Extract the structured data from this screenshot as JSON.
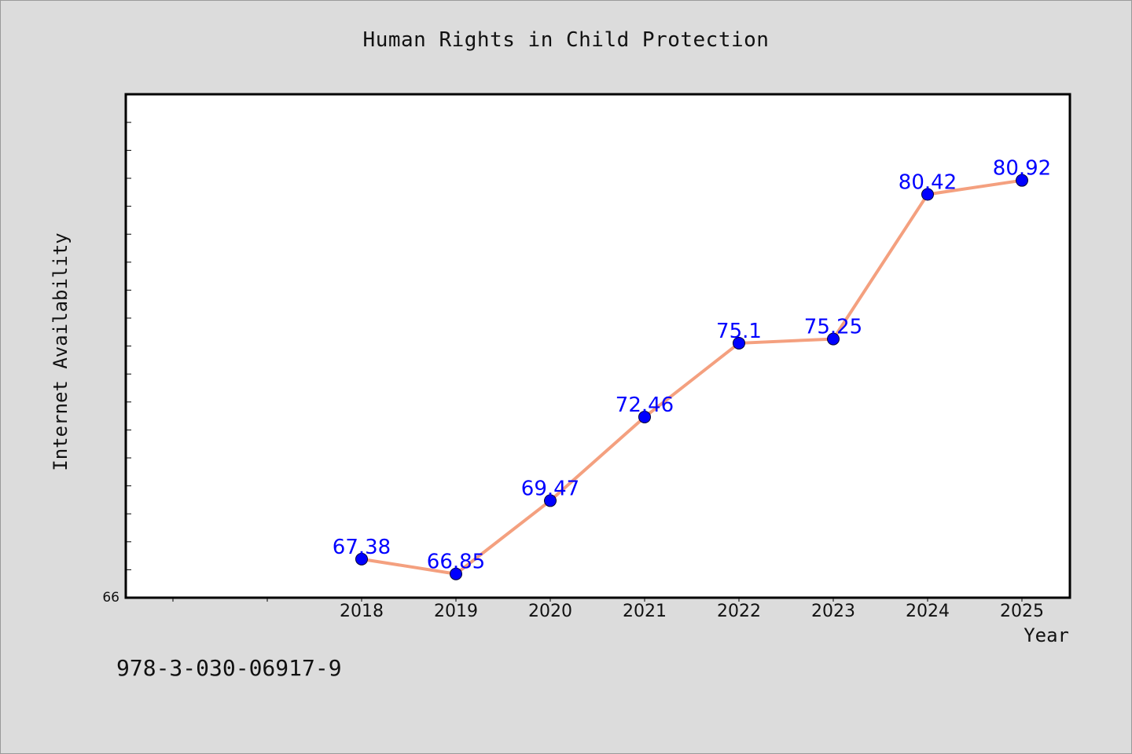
{
  "chart_data": {
    "type": "line",
    "title": "Human Rights in Child Protection",
    "xlabel": "Year",
    "ylabel": "Internet Availability",
    "categories": [
      "2018",
      "2019",
      "2020",
      "2021",
      "2022",
      "2023",
      "2024",
      "2025"
    ],
    "series": [
      {
        "values": [
          67.38,
          66.85,
          69.47,
          72.46,
          75.1,
          75.25,
          80.42,
          80.92
        ],
        "labels": [
          "67.38",
          "66.85",
          "69.47",
          "72.46",
          "75.1",
          "75.25",
          "80.42",
          "80.92"
        ],
        "line_color": "#f4a07f",
        "marker_color": "#0000ff"
      }
    ],
    "ylim": [
      66,
      84
    ],
    "y_tick_labels": [
      "66"
    ],
    "grid": false,
    "data_labels": true
  },
  "footer": {
    "isbn": "978-3-030-06917-9"
  }
}
